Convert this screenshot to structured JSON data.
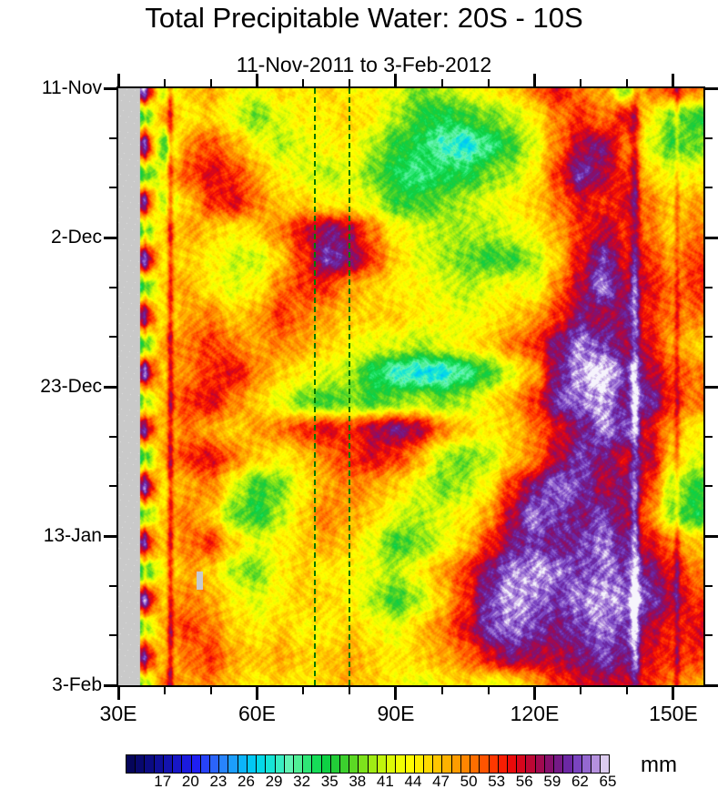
{
  "chart_data": {
    "type": "heatmap",
    "title": "Total Precipitable Water: 20S - 10S",
    "subtitle": "11-Nov-2011 to 3-Feb-2012",
    "x_axis": {
      "range_lon": [
        30,
        156.5
      ],
      "major_ticks": [
        {
          "lon": 30,
          "label": "30E"
        },
        {
          "lon": 60,
          "label": "60E"
        },
        {
          "lon": 90,
          "label": "90E"
        },
        {
          "lon": 120,
          "label": "120E"
        },
        {
          "lon": 150,
          "label": "150E"
        }
      ],
      "minor_tick_step_deg": 10
    },
    "y_axis": {
      "range_days": [
        0,
        84
      ],
      "major_ticks": [
        {
          "day": 0,
          "label": "11-Nov"
        },
        {
          "day": 21,
          "label": "2-Dec"
        },
        {
          "day": 42,
          "label": "23-Dec"
        },
        {
          "day": 63,
          "label": "13-Jan"
        },
        {
          "day": 84,
          "label": "3-Feb"
        }
      ],
      "minor_tick_step_days": 7
    },
    "colorbar": {
      "units": "mm",
      "min": 13,
      "max": 65,
      "cell_step": 1,
      "labels": [
        17,
        20,
        23,
        26,
        29,
        32,
        35,
        38,
        41,
        44,
        47,
        50,
        53,
        56,
        59,
        62,
        65
      ],
      "overflow_color": "#F6F4FC",
      "colors": [
        "#05055A",
        "#08086E",
        "#0B0B82",
        "#0F0F98",
        "#1313AE",
        "#1717C6",
        "#1B1BDE",
        "#1F1FF2",
        "#2742F8",
        "#2B64FA",
        "#2884FC",
        "#1C9EFC",
        "#0CB4FA",
        "#02C8F4",
        "#04D8E8",
        "#16E4D6",
        "#38EEC2",
        "#62F4B4",
        "#50EE96",
        "#2EE676",
        "#16DC58",
        "#0ED044",
        "#22CC38",
        "#3CD02E",
        "#5CD824",
        "#7EE21C",
        "#A0EC14",
        "#C0F40C",
        "#DCFA06",
        "#F0FE02",
        "#FFFC00",
        "#FFEE00",
        "#FFDA00",
        "#FFC600",
        "#FFB200",
        "#FF9C00",
        "#FF8600",
        "#FF6E00",
        "#FF5400",
        "#FF3800",
        "#F81E02",
        "#EA0A0A",
        "#D6061C",
        "#BC0734",
        "#A00A50",
        "#86106C",
        "#751A86",
        "#6C28A4",
        "#7A44C0",
        "#9468D0",
        "#B591DE",
        "#DCCCEF"
      ]
    },
    "mask": {
      "lon_max": 34.7,
      "color": "#C9C9C9",
      "speckle_color": "#E2E2E2"
    },
    "annotations": {
      "dashed_lines_lon": [
        72.5,
        80
      ],
      "dashed_line_color": "#007A00",
      "streaks": [
        {
          "lon": 41.2,
          "amp": 8,
          "sigma": 0.5
        },
        {
          "lon": 35.7,
          "amp": 4,
          "sigma": 0.35
        },
        {
          "lon": 141.8,
          "amp": 6,
          "sigma": 0.7
        },
        {
          "lon": 150.9,
          "amp": 4,
          "sigma": 0.4
        }
      ],
      "missing_patch": {
        "lon": 47.6,
        "day_start": 68,
        "day_end": 70.6
      }
    },
    "grid": {
      "lons": [
        30,
        35,
        40,
        45,
        50,
        55,
        60,
        65,
        70,
        75,
        80,
        85,
        90,
        95,
        100,
        105,
        110,
        115,
        120,
        125,
        130,
        135,
        140,
        145,
        150,
        155
      ],
      "days": [
        0,
        4,
        8,
        12,
        16,
        20,
        24,
        28,
        32,
        36,
        40,
        44,
        48,
        52,
        56,
        60,
        64,
        68,
        72,
        76,
        80,
        84
      ],
      "masked_value": -1,
      "values": [
        [
          -1,
          62,
          40,
          46,
          48,
          44,
          42,
          46,
          44,
          46,
          44,
          44,
          42,
          38,
          40,
          42,
          44,
          46,
          50,
          55,
          50,
          48,
          38,
          50,
          53,
          50
        ],
        [
          -1,
          35,
          48,
          44,
          46,
          42,
          38,
          42,
          44,
          44,
          46,
          44,
          40,
          36,
          34,
          36,
          38,
          40,
          44,
          50,
          53,
          50,
          55,
          44,
          38,
          36
        ],
        [
          -1,
          60,
          36,
          50,
          52,
          48,
          44,
          40,
          42,
          44,
          44,
          40,
          36,
          34,
          30,
          28,
          32,
          36,
          42,
          50,
          57,
          59,
          50,
          42,
          36,
          38
        ],
        [
          -1,
          34,
          44,
          52,
          55,
          53,
          48,
          44,
          42,
          40,
          42,
          38,
          34,
          32,
          34,
          34,
          38,
          40,
          44,
          53,
          61,
          57,
          53,
          46,
          42,
          44
        ],
        [
          -1,
          58,
          40,
          46,
          53,
          55,
          50,
          46,
          46,
          44,
          44,
          42,
          36,
          36,
          38,
          40,
          42,
          44,
          46,
          50,
          55,
          53,
          55,
          50,
          46,
          48
        ],
        [
          -1,
          36,
          46,
          48,
          46,
          44,
          46,
          50,
          55,
          59,
          57,
          50,
          44,
          42,
          40,
          40,
          40,
          42,
          44,
          48,
          53,
          57,
          53,
          50,
          46,
          50
        ],
        [
          -1,
          60,
          44,
          46,
          44,
          41,
          41,
          46,
          53,
          61,
          59,
          53,
          46,
          42,
          40,
          38,
          36,
          36,
          40,
          46,
          55,
          61,
          55,
          53,
          48,
          53
        ],
        [
          -1,
          34,
          46,
          48,
          44,
          42,
          44,
          50,
          53,
          53,
          48,
          46,
          44,
          44,
          42,
          40,
          42,
          44,
          42,
          50,
          57,
          63,
          57,
          55,
          50,
          53
        ],
        [
          -1,
          58,
          44,
          48,
          50,
          46,
          48,
          53,
          50,
          48,
          46,
          46,
          46,
          44,
          44,
          42,
          44,
          46,
          48,
          53,
          59,
          57,
          59,
          53,
          50,
          50
        ],
        [
          -1,
          35,
          48,
          50,
          53,
          50,
          48,
          50,
          48,
          46,
          44,
          42,
          42,
          40,
          42,
          44,
          46,
          50,
          53,
          59,
          63,
          61,
          57,
          55,
          48,
          46
        ],
        [
          -1,
          60,
          46,
          50,
          53,
          55,
          50,
          46,
          44,
          42,
          40,
          34,
          30,
          28,
          28,
          32,
          36,
          42,
          48,
          59,
          64,
          66,
          61,
          57,
          52,
          50
        ],
        [
          -1,
          36,
          48,
          53,
          55,
          50,
          46,
          42,
          38,
          36,
          38,
          36,
          38,
          40,
          38,
          40,
          44,
          48,
          53,
          61,
          63,
          64,
          59,
          61,
          53,
          50
        ],
        [
          -1,
          58,
          46,
          50,
          48,
          46,
          48,
          50,
          53,
          55,
          53,
          57,
          59,
          57,
          50,
          46,
          44,
          46,
          50,
          55,
          59,
          63,
          61,
          55,
          48,
          44
        ],
        [
          -1,
          34,
          48,
          53,
          55,
          50,
          46,
          44,
          46,
          50,
          53,
          55,
          53,
          48,
          40,
          38,
          40,
          46,
          50,
          57,
          61,
          59,
          55,
          57,
          46,
          42
        ],
        [
          -1,
          60,
          44,
          48,
          50,
          42,
          36,
          38,
          44,
          48,
          50,
          48,
          46,
          42,
          38,
          40,
          44,
          53,
          59,
          63,
          61,
          57,
          59,
          53,
          40,
          36
        ],
        [
          -1,
          36,
          46,
          50,
          46,
          38,
          35,
          40,
          46,
          50,
          48,
          46,
          42,
          40,
          42,
          44,
          48,
          57,
          63,
          61,
          59,
          61,
          57,
          50,
          38,
          35
        ],
        [
          -1,
          58,
          46,
          50,
          53,
          46,
          42,
          44,
          46,
          48,
          46,
          42,
          36,
          38,
          42,
          46,
          53,
          59,
          61,
          59,
          61,
          63,
          59,
          55,
          50,
          46
        ],
        [
          -1,
          35,
          44,
          48,
          46,
          40,
          38,
          44,
          46,
          44,
          44,
          42,
          40,
          44,
          48,
          53,
          59,
          63,
          64,
          63,
          61,
          63,
          61,
          59,
          55,
          50
        ],
        [
          -1,
          60,
          46,
          50,
          48,
          44,
          42,
          44,
          46,
          46,
          44,
          40,
          36,
          40,
          46,
          53,
          61,
          64,
          63,
          61,
          63,
          64,
          63,
          61,
          57,
          53
        ],
        [
          -1,
          36,
          48,
          53,
          50,
          46,
          44,
          46,
          44,
          44,
          46,
          44,
          42,
          46,
          50,
          55,
          61,
          63,
          61,
          59,
          61,
          63,
          61,
          57,
          53,
          55
        ],
        [
          -1,
          58,
          46,
          50,
          53,
          48,
          46,
          48,
          46,
          46,
          48,
          46,
          44,
          46,
          48,
          50,
          55,
          59,
          57,
          57,
          59,
          61,
          59,
          55,
          53,
          53
        ],
        [
          -1,
          38,
          50,
          48,
          50,
          46,
          44,
          46,
          44,
          46,
          48,
          46,
          44,
          42,
          44,
          46,
          43,
          44,
          48,
          53,
          55,
          57,
          55,
          53,
          50,
          48
        ]
      ]
    }
  }
}
